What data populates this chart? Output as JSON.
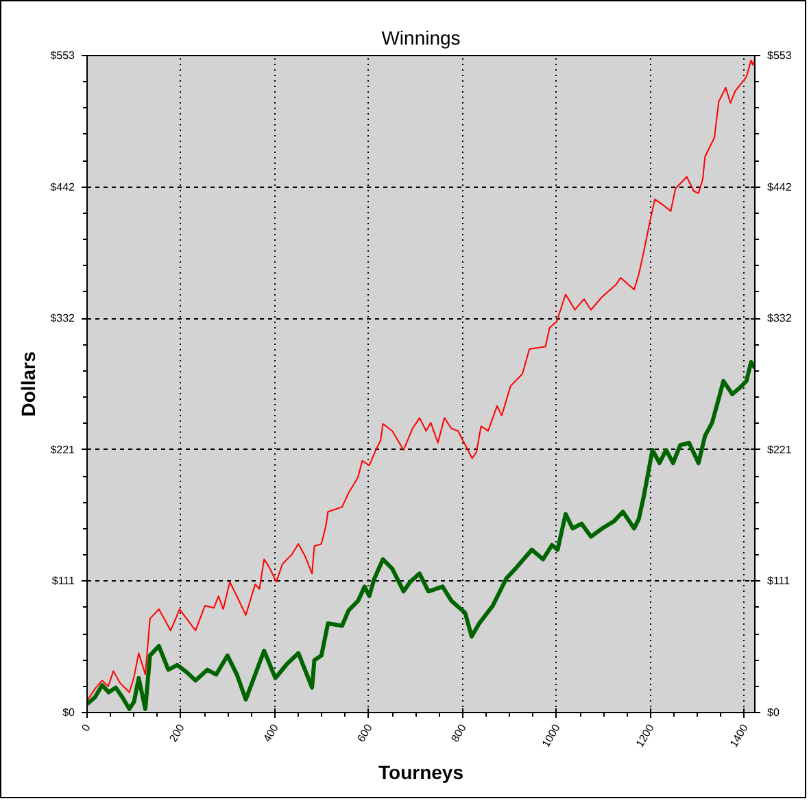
{
  "chart_data": {
    "type": "line",
    "title": "Winnings",
    "xlabel": "Tourneys",
    "ylabel": "Dollars",
    "xlim": [
      0,
      1422
    ],
    "xticks": [
      0,
      200,
      400,
      600,
      800,
      1000,
      1200,
      1400
    ],
    "ylim": [
      0,
      553
    ],
    "yticks": [
      {
        "value": 0,
        "label": "$0"
      },
      {
        "value": 110.6,
        "label": "$111"
      },
      {
        "value": 221.2,
        "label": "$221"
      },
      {
        "value": 331.8,
        "label": "$332"
      },
      {
        "value": 442.4,
        "label": "$442"
      },
      {
        "value": 553,
        "label": "$553"
      }
    ],
    "y2lim": [
      0,
      553
    ],
    "y2ticks": [
      {
        "value": 0,
        "label": "$0"
      },
      {
        "value": 110.6,
        "label": "$111"
      },
      {
        "value": 221.2,
        "label": "$221"
      },
      {
        "value": 331.8,
        "label": "$332"
      },
      {
        "value": 442.4,
        "label": "$442"
      },
      {
        "value": 553,
        "label": "$553"
      }
    ],
    "grid": true,
    "line_style": "solid",
    "series": [
      {
        "color": "#ff0000",
        "x": [
          0,
          17,
          32,
          45,
          56,
          70,
          90,
          100,
          110,
          124,
          134,
          153,
          178,
          197,
          212,
          231,
          251,
          270,
          280,
          290,
          304,
          319,
          338,
          358,
          367,
          377,
          387,
          403,
          416,
          436,
          450,
          465,
          479,
          484,
          499,
          509,
          513,
          543,
          557,
          577,
          586,
          601,
          615,
          625,
          630,
          650,
          674,
          693,
          708,
          722,
          732,
          747,
          761,
          776,
          790,
          820,
          829,
          839,
          854,
          873,
          883,
          902,
          927,
          942,
          976,
          985,
          1000,
          1019,
          1039,
          1058,
          1073,
          1097,
          1126,
          1136,
          1165,
          1175,
          1185,
          1199,
          1209,
          1224,
          1243,
          1253,
          1277,
          1292,
          1302,
          1311,
          1316,
          1336,
          1345,
          1360,
          1370,
          1380,
          1394,
          1404,
          1414,
          1418,
          1422
        ],
        "values": [
          10,
          20,
          27,
          22,
          35,
          25,
          17,
          30,
          50,
          32,
          79,
          87,
          69,
          87,
          79,
          69,
          90,
          88,
          98,
          87,
          110,
          98,
          82,
          108,
          104,
          129,
          123,
          110,
          125,
          133,
          142,
          131,
          117,
          140,
          142,
          158,
          169,
          173,
          185,
          198,
          212,
          208,
          221,
          229,
          243,
          237,
          221,
          239,
          248,
          237,
          244,
          227,
          248,
          239,
          237,
          214,
          219,
          241,
          237,
          258,
          250,
          275,
          285,
          306,
          308,
          324,
          329,
          352,
          339,
          348,
          339,
          350,
          360,
          366,
          356,
          369,
          387,
          414,
          432,
          428,
          422,
          441,
          451,
          439,
          437,
          449,
          468,
          484,
          514,
          526,
          513,
          523,
          530,
          535,
          549,
          545,
          550
        ]
      },
      {
        "color": "#006400",
        "x": [
          0,
          17,
          32,
          46,
          61,
          75,
          90,
          100,
          110,
          124,
          134,
          153,
          173,
          192,
          212,
          231,
          256,
          275,
          299,
          319,
          338,
          358,
          377,
          401,
          426,
          450,
          479,
          484,
          499,
          513,
          543,
          557,
          577,
          591,
          601,
          611,
          630,
          650,
          674,
          688,
          708,
          727,
          757,
          776,
          805,
          819,
          835,
          864,
          893,
          912,
          947,
          971,
          990,
          1002,
          1019,
          1034,
          1053,
          1073,
          1097,
          1122,
          1141,
          1165,
          1175,
          1185,
          1204,
          1219,
          1233,
          1248,
          1263,
          1282,
          1302,
          1316,
          1331,
          1345,
          1355,
          1374,
          1389,
          1404,
          1414,
          1422
        ],
        "values": [
          7,
          13,
          23,
          17,
          21,
          13,
          3,
          9,
          29,
          3,
          48,
          56,
          36,
          40,
          34,
          27,
          36,
          32,
          48,
          32,
          11,
          32,
          52,
          29,
          41,
          50,
          21,
          44,
          48,
          75,
          73,
          86,
          94,
          106,
          98,
          112,
          129,
          121,
          102,
          110,
          117,
          102,
          106,
          94,
          84,
          64,
          75,
          90,
          113,
          121,
          137,
          129,
          141,
          137,
          167,
          155,
          159,
          148,
          155,
          161,
          169,
          155,
          163,
          181,
          221,
          210,
          221,
          210,
          225,
          227,
          210,
          233,
          244,
          264,
          279,
          268,
          273,
          279,
          295,
          290
        ]
      }
    ]
  }
}
